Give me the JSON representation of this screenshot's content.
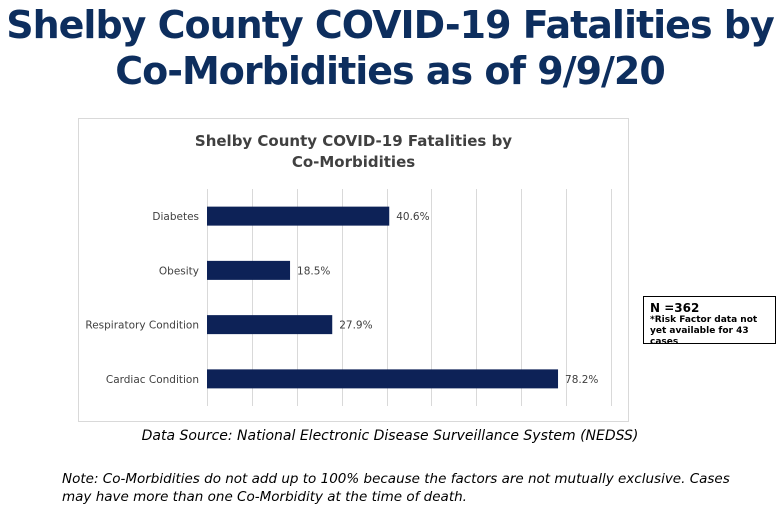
{
  "slide": {
    "title_line1": "Shelby County COVID-19 Fatalities by",
    "title_line2": "Co-Morbidities as of 9/9/20"
  },
  "note_box": {
    "n_label": "N =362",
    "detail": "*Risk Factor data not yet available for 43 cases"
  },
  "source": "Data Source: National Electronic Disease Surveillance System (NEDSS)",
  "footnote": "Note: Co-Morbidities do not add up to 100%  because the factors are not mutually exclusive. Cases may have more than one Co-Morbidity at the time of death.",
  "colors": {
    "bar": "#0d2257",
    "title": "#0d2e5e",
    "grid": "#d9d9d9"
  },
  "chart_data": {
    "type": "bar",
    "orientation": "horizontal",
    "title": "Shelby County COVID-19 Fatalities by Co-Morbidities",
    "title_line1": "Shelby County COVID-19 Fatalities by",
    "title_line2": "Co-Morbidities",
    "categories": [
      "Diabetes",
      "Obesity",
      "Respiratory Condition",
      "Cardiac Condition"
    ],
    "values": [
      40.6,
      18.5,
      27.9,
      78.2
    ],
    "data_labels": [
      "40.6%",
      "18.5%",
      "27.9%",
      "78.2%"
    ],
    "xlim": [
      0,
      90
    ],
    "x_gridline_step": 10,
    "grid": true,
    "xlabel": "",
    "ylabel": ""
  }
}
